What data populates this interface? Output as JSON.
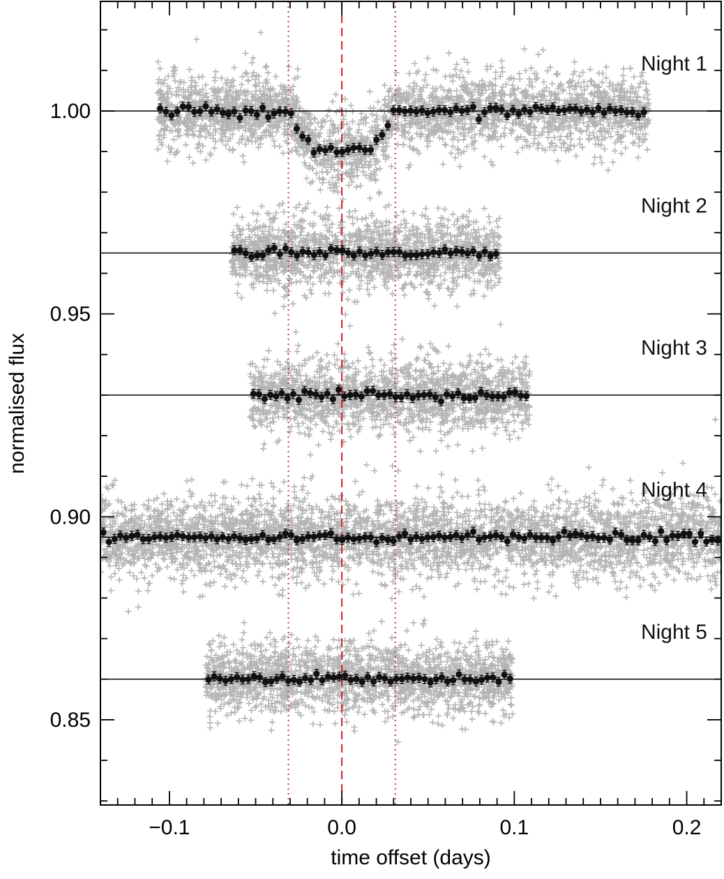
{
  "chart_data": {
    "type": "scatter",
    "title": "",
    "xlabel": "time offset (days)",
    "ylabel": "normalised flux",
    "xlim": [
      -0.14,
      0.22
    ],
    "ylim": [
      0.829,
      1.027
    ],
    "x_ticks": [
      {
        "value": -0.1,
        "label": "−0.1"
      },
      {
        "value": 0.0,
        "label": "0.0"
      },
      {
        "value": 0.1,
        "label": "0.1"
      },
      {
        "value": 0.2,
        "label": "0.2"
      }
    ],
    "y_ticks": [
      {
        "value": 0.85,
        "label": "0.85"
      },
      {
        "value": 0.9,
        "label": "0.90"
      },
      {
        "value": 0.95,
        "label": "0.95"
      },
      {
        "value": 1.0,
        "label": "1.00"
      }
    ],
    "grid": false,
    "reference_lines": [
      {
        "x": -0.031,
        "style": "dotted",
        "color": "#cc3333"
      },
      {
        "x": 0.0,
        "style": "dashed",
        "color": "#cc2222"
      },
      {
        "x": 0.031,
        "style": "dotted",
        "color": "#cc3333"
      }
    ],
    "raw_color": "#b4b4b4",
    "binned_color": "#111111",
    "series": [
      {
        "name": "Night 1",
        "baseline": 1.0,
        "x_start": -0.107,
        "x_end": 0.178,
        "scatter": 0.0045,
        "transit": true,
        "transit_depth": 0.0095
      },
      {
        "name": "Night 2",
        "baseline": 0.965,
        "x_start": -0.064,
        "x_end": 0.092,
        "scatter": 0.0045,
        "transit": false
      },
      {
        "name": "Night 3",
        "baseline": 0.93,
        "x_start": -0.053,
        "x_end": 0.109,
        "scatter": 0.0045,
        "transit": false
      },
      {
        "name": "Night 4",
        "baseline": 0.895,
        "x_start": -0.14,
        "x_end": 0.22,
        "scatter": 0.005,
        "transit": false
      },
      {
        "name": "Night 5",
        "baseline": 0.86,
        "x_start": -0.079,
        "x_end": 0.099,
        "scatter": 0.0045,
        "transit": false
      }
    ]
  }
}
